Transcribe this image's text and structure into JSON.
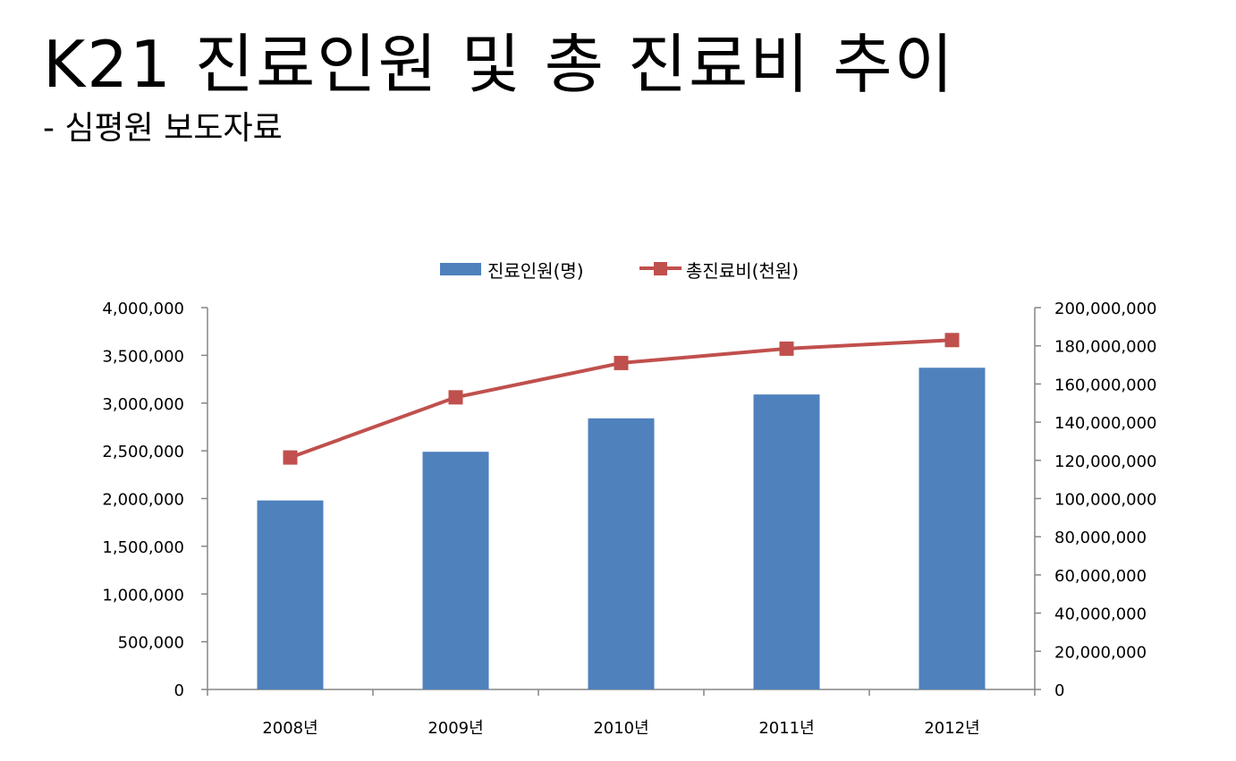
{
  "header": {
    "title": "K21 진료인원 및 총 진료비 추이",
    "subtitle": "- 심평원 보도자료"
  },
  "chart_data": {
    "type": "bar",
    "categories": [
      "2008년",
      "2009년",
      "2010년",
      "2011년",
      "2012년"
    ],
    "series": [
      {
        "name": "진료인원(명)",
        "type": "bar",
        "axis": "left",
        "color": "#4F81BD",
        "values": [
          1980000,
          2490000,
          2840000,
          3090000,
          3370000
        ]
      },
      {
        "name": "총진료비(천원)",
        "type": "line",
        "axis": "right",
        "color": "#C0504D",
        "values": [
          121500000,
          153000000,
          171000000,
          178500000,
          183000000
        ]
      }
    ],
    "ylim_left": [
      0,
      4000000
    ],
    "ylim_right": [
      0,
      200000000
    ],
    "left_ticks": [
      "0",
      "500,000",
      "1,000,000",
      "1,500,000",
      "2,000,000",
      "2,500,000",
      "3,000,000",
      "3,500,000",
      "4,000,000"
    ],
    "right_ticks": [
      "0",
      "20,000,000",
      "40,000,000",
      "60,000,000",
      "80,000,000",
      "100,000,000",
      "120,000,000",
      "140,000,000",
      "160,000,000",
      "180,000,000",
      "200,000,000"
    ],
    "legend_position": "top",
    "grid": false
  }
}
